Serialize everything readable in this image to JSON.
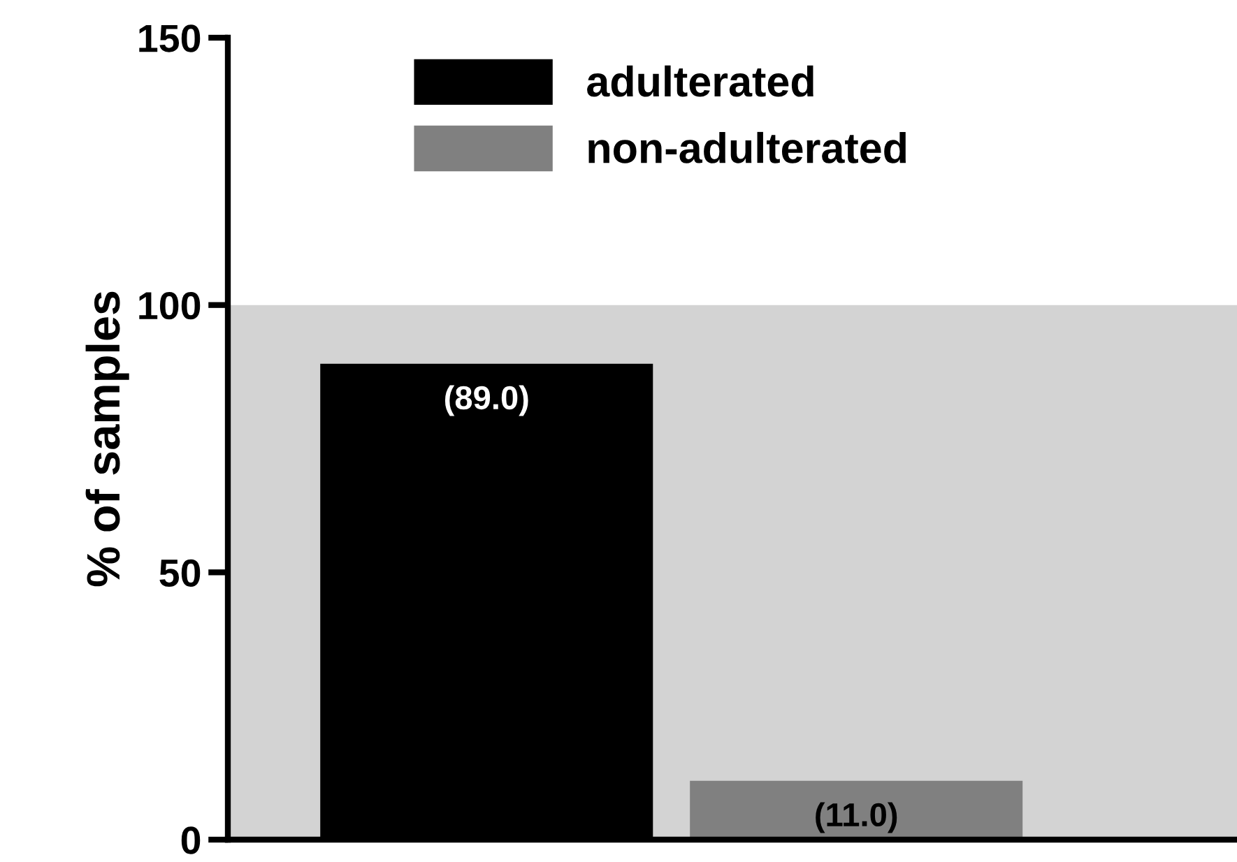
{
  "chart_data": {
    "type": "bar",
    "ylabel": "% of samples",
    "categories": [
      null,
      null
    ],
    "series": [
      {
        "name": "adulterated",
        "color": "#000000",
        "values": [
          89,
          null
        ],
        "value_labels": [
          "(89.0)",
          null
        ]
      },
      {
        "name": "non-adulterated",
        "color": "#808080",
        "values": [
          null,
          11
        ],
        "value_labels": [
          null,
          "(11.0)"
        ]
      }
    ],
    "ylim": [
      0,
      150
    ],
    "yticks": [
      0,
      50,
      100,
      150
    ],
    "bands": [
      {
        "axis": "y",
        "from": 0,
        "to": 100,
        "color": "#d3d3d3"
      }
    ],
    "legend": "top",
    "grid": false
  }
}
